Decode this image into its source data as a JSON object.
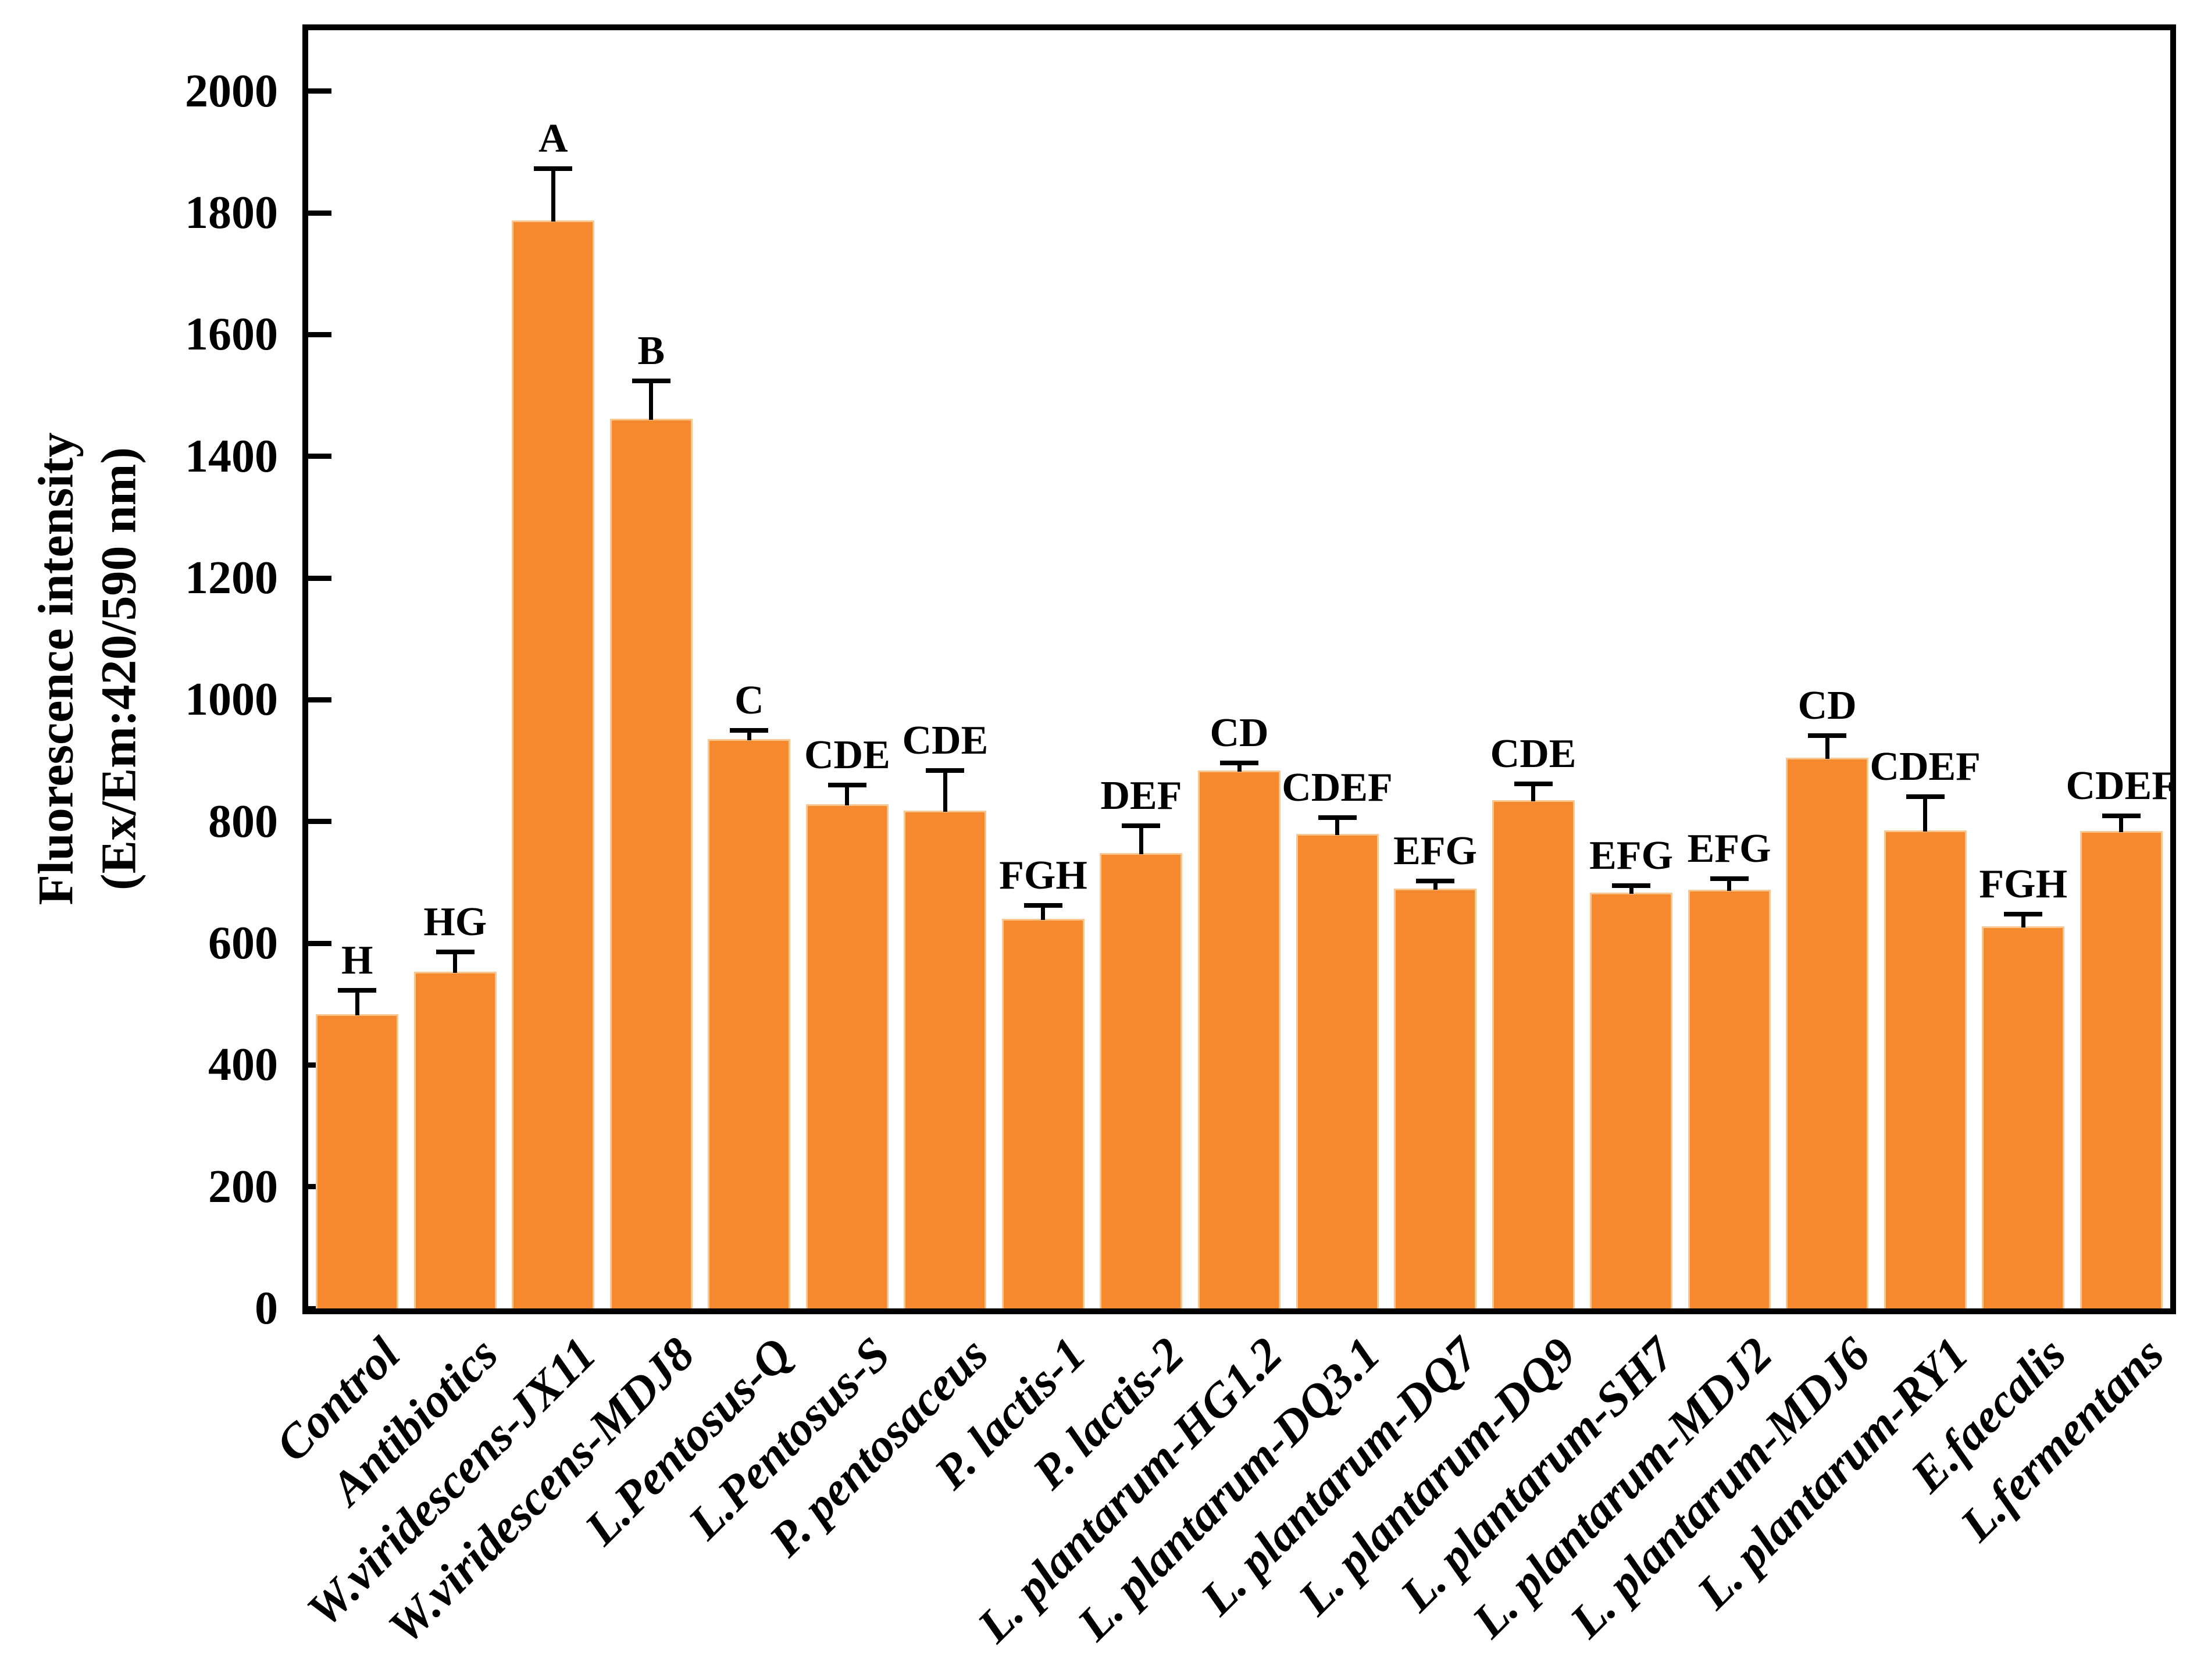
{
  "figure": {
    "background": "#ffffff",
    "axis_color": "#000000",
    "text_color": "#000000"
  },
  "chart_data": {
    "type": "bar",
    "title": "",
    "ylabel_line1": "Fluorescence intensity",
    "ylabel_line2": "(Ex/Em:420/590 nm)",
    "xlabel": "",
    "ylim": [
      0,
      2100
    ],
    "yticks": [
      0,
      200,
      400,
      600,
      800,
      1000,
      1200,
      1400,
      1600,
      1800,
      2000
    ],
    "grid": false,
    "legend_position": "none",
    "bar_color": "#F6882E",
    "bar_edge_color": "#FBC78E",
    "error_bar_color": "#000000",
    "categories": [
      "Control",
      "Antibiotics",
      "W.viridescens-JX11",
      "W.viridescens-MDJ8",
      "L.Pentosus-Q",
      "L.Pentosus-S",
      "P. pentosaceus",
      "P. lactis-1",
      "P. lactis-2",
      "L. plantarum-HG1.2",
      "L. plantarum-DQ3.1",
      "L. plantarum-DQ7",
      "L. plantarum-DQ9",
      "L. plantarum-SH7",
      "L. plantarum-MDJ2",
      "L. plantarum-MDJ6",
      "L. plantarum-RY1",
      "E.faecalis",
      "L.fermentans"
    ],
    "series": [
      {
        "name": "Fluorescence intensity (Ex/Em:420/590 nm)",
        "values": [
          483,
          553,
          1788,
          1462,
          935,
          828,
          818,
          640,
          748,
          884,
          780,
          690,
          835,
          683,
          688,
          905,
          785,
          628,
          784
        ],
        "errors": [
          40,
          33,
          85,
          62,
          15,
          32,
          66,
          22,
          45,
          12,
          26,
          12,
          27,
          12,
          18,
          36,
          56,
          20,
          25
        ],
        "sig_letters": [
          "H",
          "HG",
          "A",
          "B",
          "C",
          "CDE",
          "CDE",
          "FGH",
          "DEF",
          "CD",
          "CDEF",
          "EFG",
          "CDE",
          "EFG",
          "EFG",
          "CD",
          "CDEF",
          "FGH",
          "CDEF"
        ]
      }
    ]
  }
}
